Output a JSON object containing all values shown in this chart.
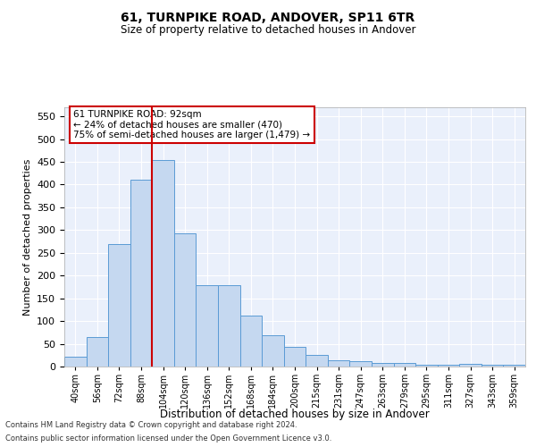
{
  "title": "61, TURNPIKE ROAD, ANDOVER, SP11 6TR",
  "subtitle": "Size of property relative to detached houses in Andover",
  "xlabel": "Distribution of detached houses by size in Andover",
  "ylabel": "Number of detached properties",
  "categories": [
    "40sqm",
    "56sqm",
    "72sqm",
    "88sqm",
    "104sqm",
    "120sqm",
    "136sqm",
    "152sqm",
    "168sqm",
    "184sqm",
    "200sqm",
    "215sqm",
    "231sqm",
    "247sqm",
    "263sqm",
    "279sqm",
    "295sqm",
    "311sqm",
    "327sqm",
    "343sqm",
    "359sqm"
  ],
  "values": [
    22,
    65,
    270,
    410,
    455,
    293,
    179,
    179,
    113,
    68,
    43,
    25,
    13,
    12,
    7,
    7,
    4,
    4,
    5,
    4,
    4
  ],
  "bar_color": "#c5d8f0",
  "bar_edge_color": "#5b9bd5",
  "bg_color": "#eaf0fb",
  "grid_color": "#ffffff",
  "vline_color": "#cc0000",
  "annotation_text": "61 TURNPIKE ROAD: 92sqm\n← 24% of detached houses are smaller (470)\n75% of semi-detached houses are larger (1,479) →",
  "annotation_box_color": "#ffffff",
  "annotation_box_edge_color": "#cc0000",
  "ylim": [
    0,
    570
  ],
  "yticks": [
    0,
    50,
    100,
    150,
    200,
    250,
    300,
    350,
    400,
    450,
    500,
    550
  ],
  "footer1": "Contains HM Land Registry data © Crown copyright and database right 2024.",
  "footer2": "Contains public sector information licensed under the Open Government Licence v3.0."
}
